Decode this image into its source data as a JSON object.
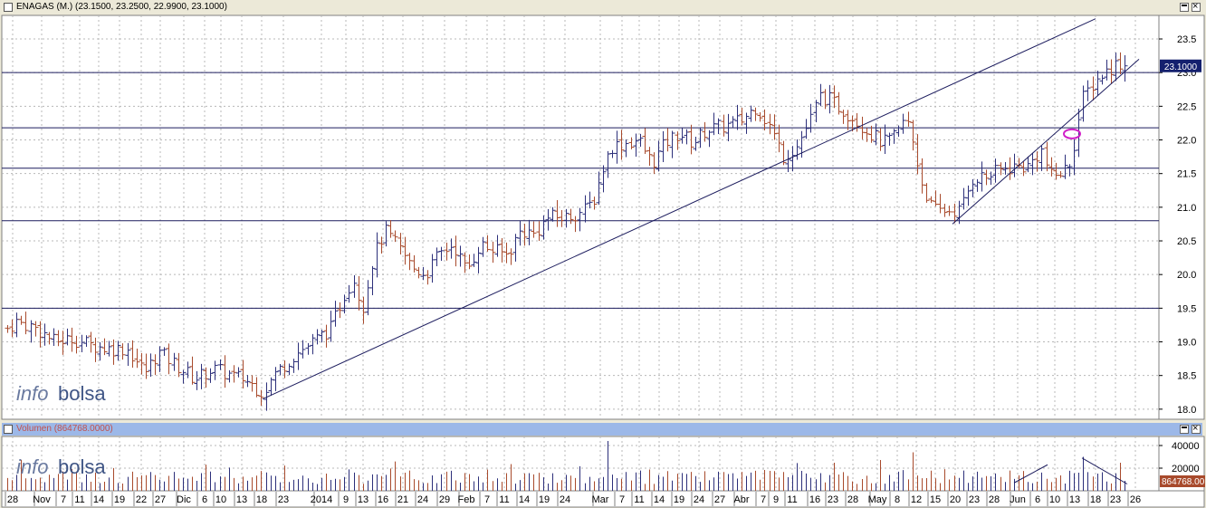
{
  "price_panel": {
    "title": "ENAGAS (M.) (23.1500, 23.2500, 22.9900, 23.1000)",
    "last_value_label": "23.1000",
    "watermark_a": "info",
    "watermark_b": "bolsa"
  },
  "volume_panel": {
    "title": "Volumen (864768.0000)",
    "last_value_label": "864768.00",
    "watermark_a": "info",
    "watermark_b": "bolsa"
  },
  "colors": {
    "up": "#2c2f7a",
    "down": "#a84a2c",
    "lines": "#1c1c5e",
    "highlight": "#d020c8",
    "value_tag": "#14206e"
  },
  "chart_data": [
    {
      "type": "ohlc",
      "series_name": "ENAGAS (M.)",
      "last": {
        "open": 23.15,
        "high": 23.25,
        "low": 22.99,
        "close": 23.1
      },
      "ylim": [
        17.85,
        23.85
      ],
      "y_ticks": [
        "18.0",
        "18.5",
        "19.0",
        "19.5",
        "20.0",
        "20.5",
        "21.0",
        "21.5",
        "22.0",
        "22.5",
        "23.0",
        "23.5"
      ],
      "horizontal_levels": [
        19.5,
        20.8,
        21.58,
        22.18,
        23.0
      ],
      "trendlines": [
        {
          "from": {
            "x": 290,
            "y": 18.15
          },
          "to": {
            "x": 1210,
            "y": 23.8
          }
        },
        {
          "from": {
            "x": 1052,
            "y": 20.75
          },
          "to": {
            "x": 1258,
            "y": 23.2
          }
        }
      ],
      "anchors": [
        {
          "x": 8,
          "y": 19.2
        },
        {
          "x": 18,
          "y": 19.3
        },
        {
          "x": 40,
          "y": 19.2
        },
        {
          "x": 60,
          "y": 19.0
        },
        {
          "x": 80,
          "y": 19.05
        },
        {
          "x": 100,
          "y": 18.95
        },
        {
          "x": 120,
          "y": 18.9
        },
        {
          "x": 140,
          "y": 18.9
        },
        {
          "x": 160,
          "y": 18.55
        },
        {
          "x": 175,
          "y": 18.85
        },
        {
          "x": 195,
          "y": 18.65
        },
        {
          "x": 215,
          "y": 18.45
        },
        {
          "x": 235,
          "y": 18.6
        },
        {
          "x": 255,
          "y": 18.5
        },
        {
          "x": 270,
          "y": 18.45
        },
        {
          "x": 290,
          "y": 18.25
        },
        {
          "x": 305,
          "y": 18.55
        },
        {
          "x": 325,
          "y": 18.8
        },
        {
          "x": 345,
          "y": 19.0
        },
        {
          "x": 365,
          "y": 19.2
        },
        {
          "x": 380,
          "y": 19.7
        },
        {
          "x": 390,
          "y": 19.95
        },
        {
          "x": 400,
          "y": 19.5
        },
        {
          "x": 412,
          "y": 20.25
        },
        {
          "x": 425,
          "y": 20.65
        },
        {
          "x": 440,
          "y": 20.4
        },
        {
          "x": 455,
          "y": 20.1
        },
        {
          "x": 470,
          "y": 20.0
        },
        {
          "x": 485,
          "y": 20.3
        },
        {
          "x": 500,
          "y": 20.45
        },
        {
          "x": 515,
          "y": 20.05
        },
        {
          "x": 530,
          "y": 20.45
        },
        {
          "x": 545,
          "y": 20.35
        },
        {
          "x": 560,
          "y": 20.3
        },
        {
          "x": 575,
          "y": 20.65
        },
        {
          "x": 590,
          "y": 20.6
        },
        {
          "x": 605,
          "y": 20.85
        },
        {
          "x": 625,
          "y": 20.85
        },
        {
          "x": 645,
          "y": 20.95
        },
        {
          "x": 655,
          "y": 21.1
        },
        {
          "x": 665,
          "y": 21.55
        },
        {
          "x": 675,
          "y": 21.9
        },
        {
          "x": 690,
          "y": 21.95
        },
        {
          "x": 705,
          "y": 22.0
        },
        {
          "x": 720,
          "y": 21.65
        },
        {
          "x": 735,
          "y": 21.95
        },
        {
          "x": 750,
          "y": 22.1
        },
        {
          "x": 765,
          "y": 21.95
        },
        {
          "x": 780,
          "y": 22.15
        },
        {
          "x": 800,
          "y": 22.2
        },
        {
          "x": 820,
          "y": 22.3
        },
        {
          "x": 835,
          "y": 22.5
        },
        {
          "x": 850,
          "y": 22.2
        },
        {
          "x": 865,
          "y": 21.75
        },
        {
          "x": 880,
          "y": 21.9
        },
        {
          "x": 895,
          "y": 22.3
        },
        {
          "x": 905,
          "y": 22.65
        },
        {
          "x": 915,
          "y": 22.6
        },
        {
          "x": 930,
          "y": 22.45
        },
        {
          "x": 945,
          "y": 22.3
        },
        {
          "x": 960,
          "y": 22.1
        },
        {
          "x": 975,
          "y": 21.95
        },
        {
          "x": 990,
          "y": 22.05
        },
        {
          "x": 1000,
          "y": 22.35
        },
        {
          "x": 1008,
          "y": 21.95
        },
        {
          "x": 1018,
          "y": 21.35
        },
        {
          "x": 1030,
          "y": 20.95
        },
        {
          "x": 1045,
          "y": 20.95
        },
        {
          "x": 1060,
          "y": 20.95
        },
        {
          "x": 1075,
          "y": 21.45
        },
        {
          "x": 1090,
          "y": 21.45
        },
        {
          "x": 1105,
          "y": 21.55
        },
        {
          "x": 1120,
          "y": 21.6
        },
        {
          "x": 1135,
          "y": 21.6
        },
        {
          "x": 1150,
          "y": 21.85
        },
        {
          "x": 1160,
          "y": 21.45
        },
        {
          "x": 1170,
          "y": 21.5
        },
        {
          "x": 1180,
          "y": 21.6
        },
        {
          "x": 1188,
          "y": 22.05
        },
        {
          "x": 1195,
          "y": 22.6
        },
        {
          "x": 1205,
          "y": 22.8
        },
        {
          "x": 1215,
          "y": 22.95
        },
        {
          "x": 1225,
          "y": 23.05
        },
        {
          "x": 1235,
          "y": 23.15
        },
        {
          "x": 1243,
          "y": 23.1
        }
      ],
      "highlight_circle": {
        "x": 1184,
        "y": 22.09
      },
      "last_value_tag_y": 23.1
    },
    {
      "type": "bar",
      "series_name": "Volumen",
      "ylim": [
        0,
        48000
      ],
      "y_ticks": [
        "40000",
        "20000"
      ],
      "last_value": 864768.0,
      "note_peaks": [
        {
          "x": 673,
          "value": 44000
        },
        {
          "x": 1008,
          "value": 34000
        },
        {
          "x": 1195,
          "value": 30000
        }
      ],
      "trendlines": [
        {
          "from": {
            "x": 1120,
            "value": 7000
          },
          "to": {
            "x": 1157,
            "value": 23000
          }
        },
        {
          "from": {
            "x": 1195,
            "value": 29000
          },
          "to": {
            "x": 1245,
            "value": 6000
          }
        }
      ]
    }
  ],
  "x_axis": {
    "labels": [
      {
        "t": "28",
        "x": 14
      },
      {
        "t": "Nov",
        "x": 46
      },
      {
        "t": "7",
        "x": 70
      },
      {
        "t": "11",
        "x": 88
      },
      {
        "t": "14",
        "x": 109
      },
      {
        "t": "19",
        "x": 132
      },
      {
        "t": "22",
        "x": 156
      },
      {
        "t": "27",
        "x": 177
      },
      {
        "t": "Dic",
        "x": 203
      },
      {
        "t": "6",
        "x": 226
      },
      {
        "t": "10",
        "x": 244
      },
      {
        "t": "13",
        "x": 267
      },
      {
        "t": "18",
        "x": 289
      },
      {
        "t": "23",
        "x": 313
      },
      {
        "t": "2014",
        "x": 355
      },
      {
        "t": "9",
        "x": 382
      },
      {
        "t": "13",
        "x": 401
      },
      {
        "t": "16",
        "x": 423
      },
      {
        "t": "21",
        "x": 445
      },
      {
        "t": "24",
        "x": 467
      },
      {
        "t": "29",
        "x": 491
      },
      {
        "t": "Feb",
        "x": 515
      },
      {
        "t": "7",
        "x": 538
      },
      {
        "t": "11",
        "x": 557
      },
      {
        "t": "14",
        "x": 579
      },
      {
        "t": "19",
        "x": 601
      },
      {
        "t": "24",
        "x": 624
      },
      {
        "t": "Mar",
        "x": 663
      },
      {
        "t": "7",
        "x": 687
      },
      {
        "t": "11",
        "x": 706
      },
      {
        "t": "14",
        "x": 728
      },
      {
        "t": "19",
        "x": 750
      },
      {
        "t": "24",
        "x": 772
      },
      {
        "t": "27",
        "x": 795
      },
      {
        "t": "Abr",
        "x": 819
      },
      {
        "t": "7",
        "x": 843
      },
      {
        "t": "9",
        "x": 857
      },
      {
        "t": "11",
        "x": 875
      },
      {
        "t": "16",
        "x": 900
      },
      {
        "t": "23",
        "x": 920
      },
      {
        "t": "28",
        "x": 942
      },
      {
        "t": "May",
        "x": 969
      },
      {
        "t": "8",
        "x": 991
      },
      {
        "t": "12",
        "x": 1012
      },
      {
        "t": "15",
        "x": 1033
      },
      {
        "t": "20",
        "x": 1055
      },
      {
        "t": "23",
        "x": 1076
      },
      {
        "t": "28",
        "x": 1098
      },
      {
        "t": "Jun",
        "x": 1124
      },
      {
        "t": "6",
        "x": 1146
      },
      {
        "t": "10",
        "x": 1165
      },
      {
        "t": "13",
        "x": 1187
      },
      {
        "t": "18",
        "x": 1210
      },
      {
        "t": "23",
        "x": 1232
      },
      {
        "t": "26",
        "x": 1254
      }
    ]
  }
}
